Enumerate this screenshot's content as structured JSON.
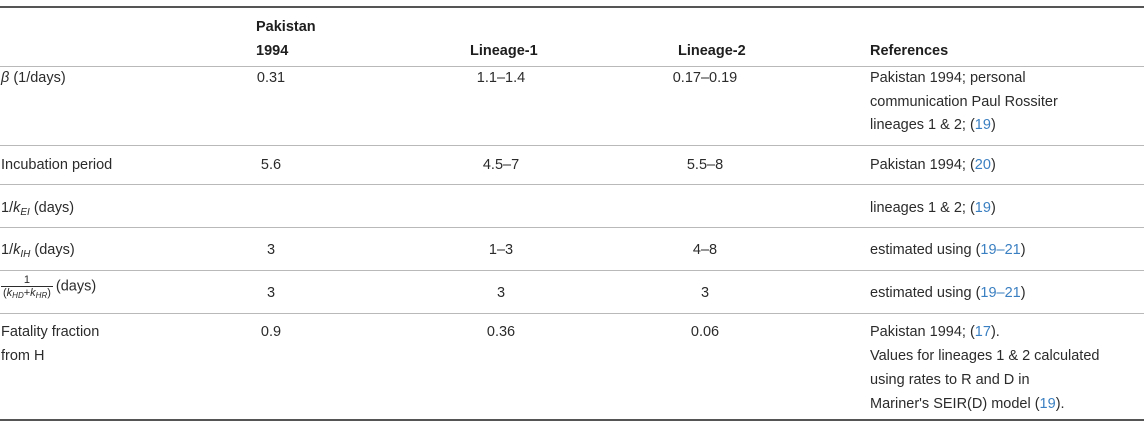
{
  "headers": {
    "col1_line1": "Pakistan",
    "col1_line2": "1994",
    "col2": "Lineage-1",
    "col3": "Lineage-2",
    "col4": "References"
  },
  "rows": {
    "beta": {
      "symbol": "β",
      "unit": " (1/days)",
      "v1": "0.31",
      "v2": "1.1–1.4",
      "v3": "0.17–0.19",
      "ref": {
        "line1": "Pakistan 1994; personal",
        "line2": "communication Paul Rossiter",
        "line3_pre": "lineages 1 & 2; (",
        "line3_link": "19",
        "line3_post": ")"
      }
    },
    "incubation": {
      "label": "Incubation period",
      "v1": "5.6",
      "v2": "4.5–7",
      "v3": "5.5–8",
      "ref": {
        "pre": "Pakistan 1994; (",
        "link": "20",
        "post": ")"
      }
    },
    "kEI": {
      "prefix": "1/",
      "k": "k",
      "sub": "EI",
      "unit": " (days)",
      "ref": {
        "pre": "lineages 1 & 2; (",
        "link": "19",
        "post": ")"
      }
    },
    "kIH": {
      "prefix": "1/",
      "k": "k",
      "sub": "IH",
      "unit": " (days)",
      "v1": "3",
      "v2": "1–3",
      "v3": "4–8",
      "ref": {
        "pre": "estimated using (",
        "link": "19–21",
        "post": ")"
      }
    },
    "kHDHR": {
      "num": "1",
      "den_open": "(",
      "k1": "k",
      "sub1": "HD",
      "plus": "+",
      "k2": "k",
      "sub2": "HR",
      "den_close": ")",
      "unit": "(days)",
      "v1": "3",
      "v2": "3",
      "v3": "3",
      "ref": {
        "pre": "estimated using (",
        "link": "19–21",
        "post": ")"
      }
    },
    "fatality": {
      "label_line1": "Fatality fraction",
      "label_line2": "from H",
      "v1": "0.9",
      "v2": "0.36",
      "v3": "0.06",
      "ref": {
        "line1_pre": "Pakistan 1994; (",
        "line1_link": "17",
        "line1_post": ").",
        "line2": "Values for lineages 1 & 2 calculated",
        "line3": "using rates to R and D in",
        "line4_pre": "Mariner's SEIR(D) model (",
        "line4_link": "19",
        "line4_post": ")."
      }
    }
  }
}
